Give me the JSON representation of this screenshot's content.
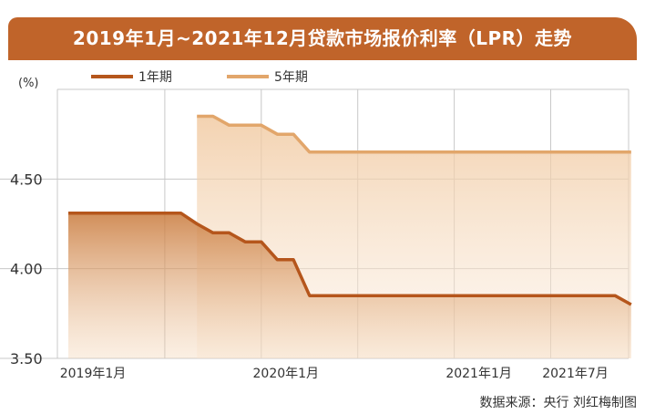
{
  "title": "2019年1月~2021年12月贷款市场报价利率（LPR）走势",
  "source": "数据来源：央行  刘红梅制图",
  "colors": {
    "title_bg": "#c0642a",
    "series_1y": "#b5561c",
    "series_5y": "#e2a66b",
    "grid": "#c8c8c8"
  },
  "chart_data": {
    "type": "line",
    "ylabel": "(%)",
    "xlim": [
      "2019-01",
      "2021-12"
    ],
    "ylim": [
      3.5,
      5.0
    ],
    "y_ticks": [
      "3.50",
      "4.00",
      "4.50"
    ],
    "x_ticks": [
      {
        "label": "2019年1月",
        "x": "2019-01"
      },
      {
        "label": "2020年1月",
        "x": "2020-01"
      },
      {
        "label": "2021年1月",
        "x": "2021-01"
      },
      {
        "label": "2021年7月",
        "x": "2021-07"
      }
    ],
    "grid": true,
    "legend": "top-left",
    "series": [
      {
        "name": "1年期",
        "points": [
          {
            "x": "2019-01",
            "y": 4.31
          },
          {
            "x": "2019-08",
            "y": 4.31
          },
          {
            "x": "2019-09",
            "y": 4.25
          },
          {
            "x": "2019-10",
            "y": 4.2
          },
          {
            "x": "2019-11",
            "y": 4.2
          },
          {
            "x": "2019-12",
            "y": 4.15
          },
          {
            "x": "2020-01",
            "y": 4.15
          },
          {
            "x": "2020-02",
            "y": 4.05
          },
          {
            "x": "2020-03",
            "y": 4.05
          },
          {
            "x": "2020-04",
            "y": 3.85
          },
          {
            "x": "2021-11",
            "y": 3.85
          },
          {
            "x": "2021-12",
            "y": 3.8
          }
        ]
      },
      {
        "name": "5年期",
        "points": [
          {
            "x": "2019-09",
            "y": 4.85
          },
          {
            "x": "2019-10",
            "y": 4.85
          },
          {
            "x": "2019-11",
            "y": 4.8
          },
          {
            "x": "2020-01",
            "y": 4.8
          },
          {
            "x": "2020-02",
            "y": 4.75
          },
          {
            "x": "2020-03",
            "y": 4.75
          },
          {
            "x": "2020-04",
            "y": 4.65
          },
          {
            "x": "2021-12",
            "y": 4.65
          }
        ]
      }
    ]
  }
}
